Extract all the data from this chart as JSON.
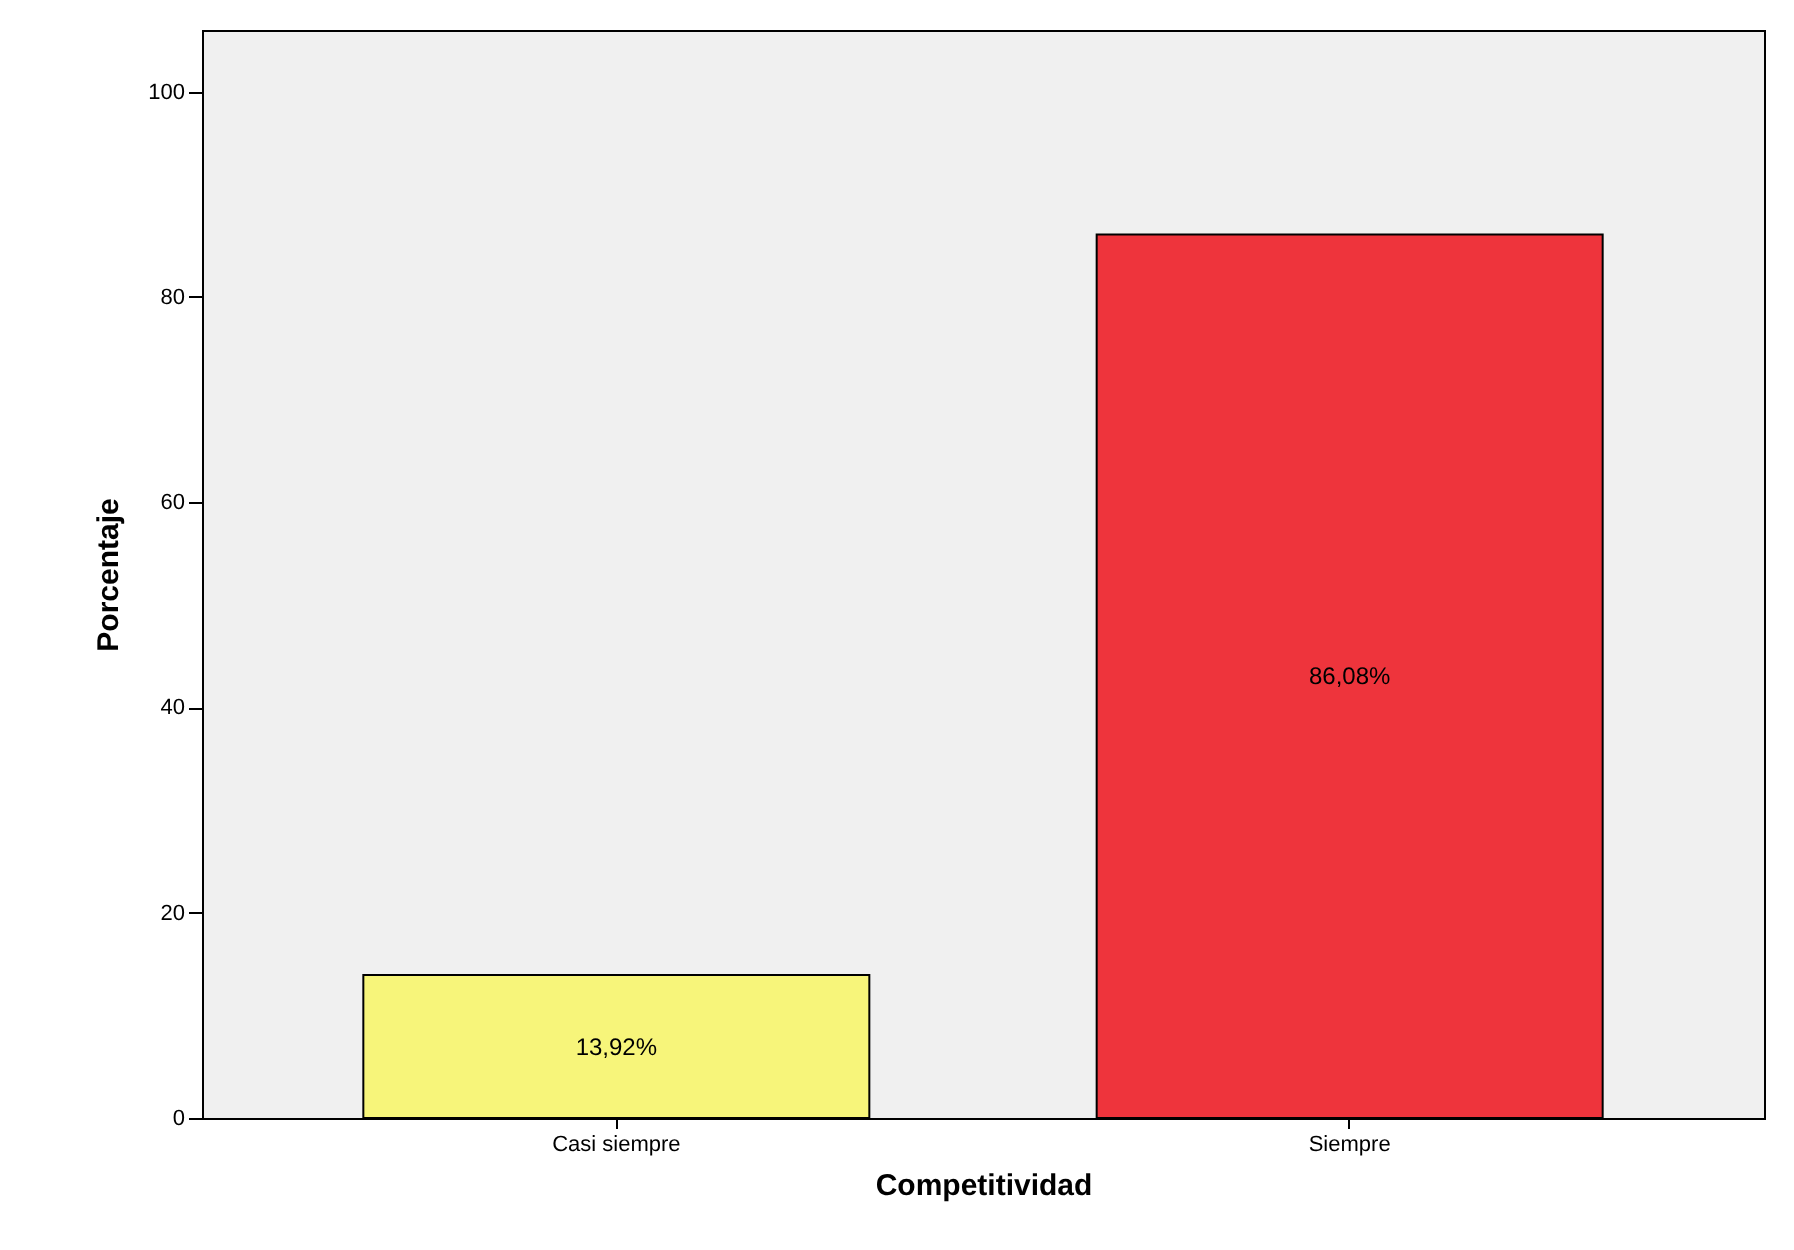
{
  "chart_data": {
    "type": "bar",
    "xlabel": "Competitividad",
    "ylabel": "Porcentaje",
    "categories": [
      "Casi siempre",
      "Siempre"
    ],
    "values": [
      13.92,
      86.08
    ],
    "colors": [
      "#f7f57a",
      "#ee343c"
    ],
    "value_labels": [
      "13,92%",
      "86,08%"
    ],
    "ylim": [
      0,
      106
    ],
    "yticks": [
      0,
      20,
      40,
      60,
      80,
      100
    ],
    "grid": false
  }
}
